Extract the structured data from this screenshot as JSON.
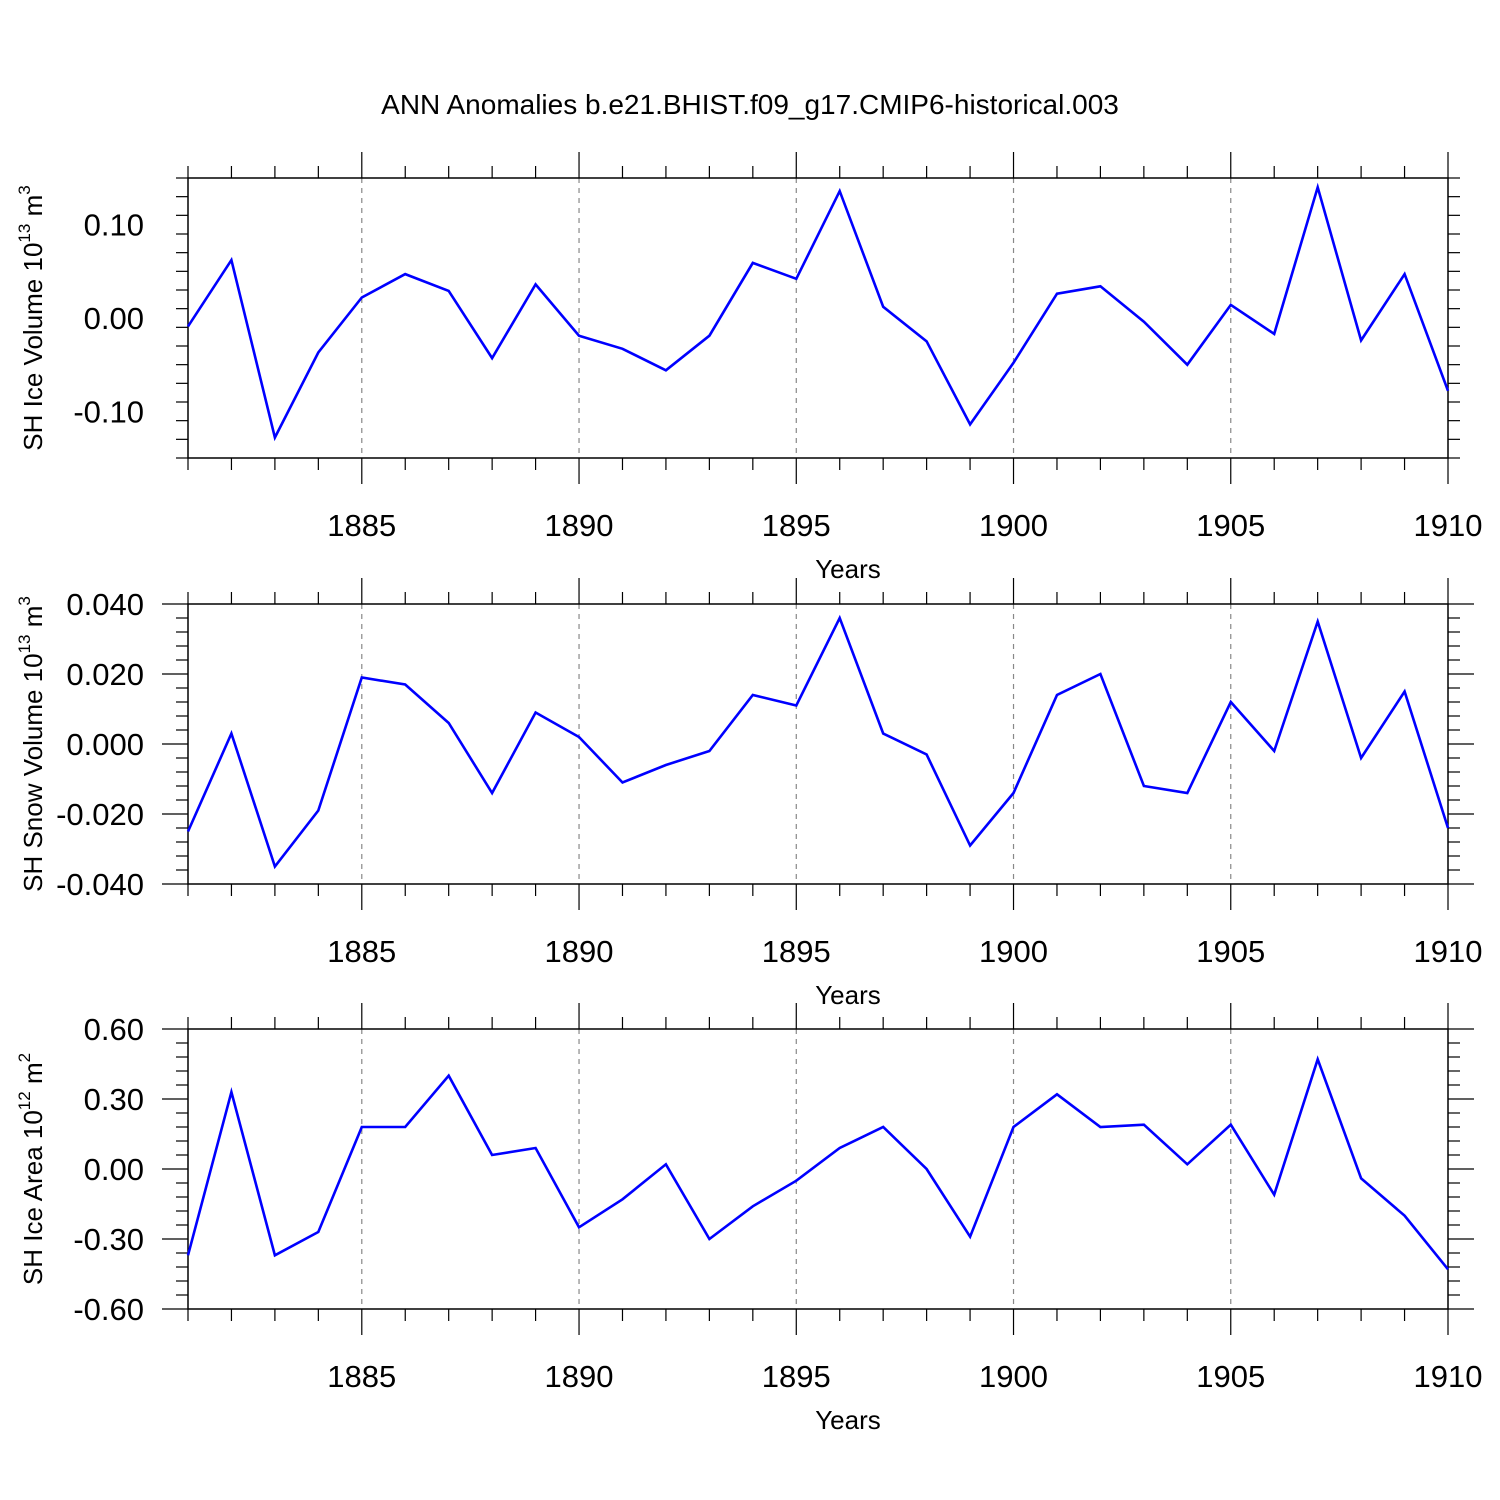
{
  "chart_data": [
    {
      "type": "line",
      "title": "ANN Anomalies b.e21.BHIST.f09_g17.CMIP6-historical.003",
      "xlabel": "Years",
      "ylabel": {
        "base": "SH Ice Volume 10",
        "exp": "13",
        "unit": " m",
        "unit_exp": "3"
      },
      "xlim": [
        1881,
        1910
      ],
      "ylim": [
        -0.15,
        0.15
      ],
      "xticks": [
        "1885",
        "1890",
        "1895",
        "1900",
        "1905",
        "1910"
      ],
      "yticks": [
        {
          "v": 0.1,
          "label": "0.10"
        },
        {
          "v": 0.0,
          "label": "0.00"
        },
        {
          "v": -0.1,
          "label": "-0.10"
        }
      ],
      "grid": "dashed vertical at labeled years",
      "color": "#0000ff",
      "x": [
        1881,
        1882,
        1883,
        1884,
        1885,
        1886,
        1887,
        1888,
        1889,
        1890,
        1891,
        1892,
        1893,
        1894,
        1895,
        1896,
        1897,
        1898,
        1899,
        1900,
        1901,
        1902,
        1903,
        1904,
        1905,
        1906,
        1907,
        1908,
        1909,
        1910
      ],
      "values": [
        -0.009,
        0.062,
        -0.128,
        -0.037,
        0.022,
        0.047,
        0.029,
        -0.043,
        0.036,
        -0.019,
        -0.033,
        -0.056,
        -0.019,
        0.059,
        0.042,
        0.136,
        0.012,
        -0.025,
        -0.114,
        -0.048,
        0.026,
        0.034,
        -0.004,
        -0.05,
        0.014,
        -0.017,
        0.14,
        -0.024,
        0.047,
        -0.078
      ]
    },
    {
      "type": "line",
      "title": "",
      "xlabel": "Years",
      "ylabel": {
        "base": "SH Snow Volume 10",
        "exp": "13",
        "unit": " m",
        "unit_exp": "3"
      },
      "xlim": [
        1881,
        1910
      ],
      "ylim": [
        -0.04,
        0.04
      ],
      "xticks": [
        "1885",
        "1890",
        "1895",
        "1900",
        "1905",
        "1910"
      ],
      "yticks": [
        {
          "v": 0.04,
          "label": "0.040"
        },
        {
          "v": 0.02,
          "label": "0.020"
        },
        {
          "v": 0.0,
          "label": "0.000"
        },
        {
          "v": -0.02,
          "label": "-0.020"
        },
        {
          "v": -0.04,
          "label": "-0.040"
        }
      ],
      "grid": "dashed vertical at labeled years",
      "color": "#0000ff",
      "x": [
        1881,
        1882,
        1883,
        1884,
        1885,
        1886,
        1887,
        1888,
        1889,
        1890,
        1891,
        1892,
        1893,
        1894,
        1895,
        1896,
        1897,
        1898,
        1899,
        1900,
        1901,
        1902,
        1903,
        1904,
        1905,
        1906,
        1907,
        1908,
        1909,
        1910
      ],
      "values": [
        -0.025,
        0.003,
        -0.035,
        -0.019,
        0.019,
        0.017,
        0.006,
        -0.014,
        0.009,
        0.002,
        -0.011,
        -0.006,
        -0.002,
        0.014,
        0.011,
        0.036,
        0.003,
        -0.003,
        -0.029,
        -0.014,
        0.014,
        0.02,
        -0.012,
        -0.014,
        0.012,
        -0.002,
        0.035,
        -0.004,
        0.015,
        -0.024
      ]
    },
    {
      "type": "line",
      "title": "",
      "xlabel": "Years",
      "ylabel": {
        "base": "SH Ice Area 10",
        "exp": "12",
        "unit": " m",
        "unit_exp": "2"
      },
      "xlim": [
        1881,
        1910
      ],
      "ylim": [
        -0.6,
        0.6
      ],
      "xticks": [
        "1885",
        "1890",
        "1895",
        "1900",
        "1905",
        "1910"
      ],
      "yticks": [
        {
          "v": 0.6,
          "label": "0.60"
        },
        {
          "v": 0.3,
          "label": "0.30"
        },
        {
          "v": 0.0,
          "label": "0.00"
        },
        {
          "v": -0.3,
          "label": "-0.30"
        },
        {
          "v": -0.6,
          "label": "-0.60"
        }
      ],
      "grid": "dashed vertical at labeled years",
      "color": "#0000ff",
      "x": [
        1881,
        1882,
        1883,
        1884,
        1885,
        1886,
        1887,
        1888,
        1889,
        1890,
        1891,
        1892,
        1893,
        1894,
        1895,
        1896,
        1897,
        1898,
        1899,
        1900,
        1901,
        1902,
        1903,
        1904,
        1905,
        1906,
        1907,
        1908,
        1909,
        1910
      ],
      "values": [
        -0.37,
        0.33,
        -0.37,
        -0.27,
        0.18,
        0.18,
        0.4,
        0.06,
        0.09,
        -0.25,
        -0.13,
        0.02,
        -0.3,
        -0.16,
        -0.05,
        0.09,
        0.18,
        0.0,
        -0.29,
        0.18,
        0.32,
        0.18,
        0.19,
        0.02,
        0.19,
        -0.11,
        0.47,
        -0.04,
        -0.2,
        -0.43
      ]
    }
  ]
}
